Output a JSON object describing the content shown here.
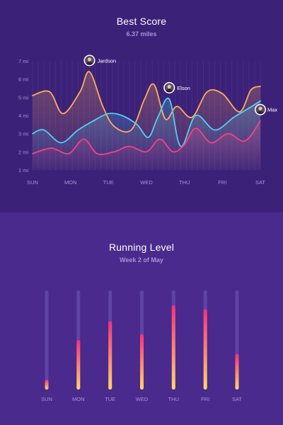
{
  "best_score": {
    "title": "Best Score",
    "subtitle": "6.37 miles"
  },
  "running_level": {
    "title": "Running Level",
    "subtitle": "Week 2 of May"
  },
  "colors": {
    "orange": "#ffad5a",
    "cyan": "#4fd1f0",
    "pink": "#f4437f",
    "bar_top": "#f5317d",
    "bar_bottom": "#ffd76a",
    "track": "#6a4fb0",
    "axis_text": "#a796d8"
  },
  "chart_data": [
    {
      "type": "line",
      "title": "Best Score",
      "subtitle": "6.37 miles",
      "y_ticks": [
        "1 mi",
        "2 mi",
        "3 mi",
        "4 mi",
        "5 mi",
        "6 mi",
        "7 mi"
      ],
      "ylim": [
        1,
        7
      ],
      "x_ticks": [
        "SUN",
        "MON",
        "TUE",
        "WED",
        "THU",
        "FRI",
        "SAT"
      ],
      "xlim": [
        0,
        6
      ],
      "grid": true,
      "series": [
        {
          "name": "Jardson",
          "color": "#ffad5a",
          "x": [
            0,
            0.45,
            0.8,
            1.25,
            1.5,
            1.85,
            2.15,
            2.6,
            2.95,
            3.2,
            3.5,
            3.8,
            4.2,
            4.6,
            5.0,
            5.45,
            5.75,
            6.0
          ],
          "y": [
            5.1,
            5.3,
            4.1,
            5.3,
            6.4,
            4.5,
            3.4,
            3.2,
            4.9,
            5.7,
            3.8,
            4.5,
            3.9,
            5.3,
            5.2,
            4.2,
            5.4,
            5.6
          ],
          "label_x": 1.5
        },
        {
          "name": "Elson",
          "color": "#4fd1f0",
          "x": [
            0,
            0.3,
            0.75,
            1.2,
            1.6,
            2.0,
            2.35,
            2.75,
            3.05,
            3.3,
            3.6,
            3.9,
            4.3,
            4.8,
            5.3,
            5.7,
            6.0
          ],
          "y": [
            3.0,
            3.2,
            2.5,
            3.2,
            3.7,
            4.1,
            4.0,
            3.5,
            2.8,
            3.9,
            4.9,
            2.3,
            4.0,
            3.2,
            3.9,
            4.4,
            4.8
          ],
          "label_x": 3.75
        },
        {
          "name": "Max",
          "color": "#f4437f",
          "x": [
            0,
            0.5,
            0.95,
            1.35,
            1.7,
            2.15,
            2.55,
            3.0,
            3.35,
            3.7,
            4.0,
            4.3,
            4.7,
            5.15,
            5.6,
            6.0
          ],
          "y": [
            1.9,
            2.2,
            1.9,
            2.7,
            1.9,
            2.0,
            2.3,
            2.0,
            2.7,
            2.0,
            2.4,
            3.3,
            2.5,
            3.0,
            2.6,
            3.7
          ],
          "label_x": 6.0
        }
      ],
      "legend": "inline"
    },
    {
      "type": "bar",
      "title": "Running Level",
      "subtitle": "Week 2 of May",
      "categories": [
        "SUN",
        "MON",
        "TUE",
        "WED",
        "THU",
        "FRI",
        "SAT"
      ],
      "values": [
        0.1,
        0.5,
        0.69,
        0.56,
        0.85,
        0.81,
        0.36
      ],
      "ylim": [
        0,
        1
      ],
      "grid": false
    }
  ]
}
